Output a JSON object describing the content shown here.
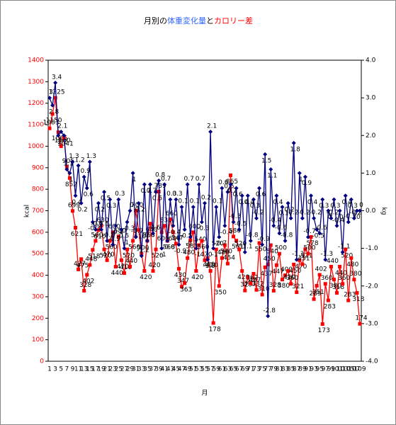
{
  "chart_data": {
    "type": "line",
    "title_parts": [
      "月別の",
      "体重変化量",
      "と",
      "カロリー差"
    ],
    "xlabel": "月",
    "ylabel": "kcal",
    "y2label": "kg",
    "categories": [
      "1",
      null,
      "3",
      null,
      "5",
      null,
      "7",
      null,
      "9",
      null,
      "11",
      null,
      "13",
      null,
      "15",
      null,
      "17",
      null,
      "19",
      null,
      "21",
      null,
      "23",
      null,
      "25",
      null,
      "27",
      null,
      "29",
      null,
      "31",
      null,
      "33",
      null,
      "35",
      null,
      "37",
      null,
      "39",
      null,
      "41",
      null,
      "43",
      null,
      "45",
      null,
      "47",
      null,
      "49",
      null,
      "51",
      null,
      "53",
      null,
      "55",
      null,
      "57",
      null,
      "59",
      null,
      "61",
      null,
      "63",
      null,
      "65",
      null,
      "67",
      null,
      "69",
      null,
      "71",
      null,
      "73",
      null,
      "75",
      null,
      "77",
      null,
      "79",
      null,
      "81",
      null,
      "83",
      null,
      "85",
      null,
      "87",
      null,
      "89",
      null,
      "91",
      null,
      "93",
      null,
      "95",
      null,
      "97",
      null,
      "99",
      null,
      "101",
      null,
      "103",
      null,
      "105",
      null,
      "107",
      null,
      "109"
    ],
    "ylim": [
      0,
      1400
    ],
    "yticks": [
      0,
      100,
      200,
      300,
      400,
      500,
      600,
      700,
      800,
      900,
      1000,
      1100,
      1200,
      1300,
      1400
    ],
    "y2lim": [
      -4,
      4
    ],
    "y2ticks": [
      {
        "value": -4,
        "label": "-4.0"
      },
      {
        "value": -3,
        "label": "-3.0"
      },
      {
        "value": -2,
        "label": "-2.0"
      },
      {
        "value": -1,
        "label": "-1.0"
      },
      {
        "value": 0,
        "label": "0.0"
      },
      {
        "value": 1,
        "label": "1.0"
      },
      {
        "value": 2,
        "label": "2.0"
      },
      {
        "value": 3,
        "label": "3.0"
      },
      {
        "value": 4,
        "label": "4.0"
      }
    ],
    "series": [
      {
        "name": "カロリー差",
        "color": "#ff0000",
        "marker": "square",
        "values": [
          1083,
          1150,
          1225,
          1065,
          1000,
          1041,
          905,
          852,
          699,
          621,
          427,
          475,
          328,
          402,
          448,
          518,
          560,
          610,
          630,
          520,
          470,
          560,
          600,
          440,
          580,
          470,
          410,
          520,
          440,
          560,
          700,
          610,
          500,
          420,
          560,
          640,
          420,
          520,
          789,
          600,
          630,
          560,
          660,
          600,
          547,
          430,
          347,
          363,
          480,
          563,
          600,
          420,
          540,
          560,
          470,
          480,
          420,
          178,
          520,
          350,
          480,
          540,
          454,
          865,
          580,
          561,
          520,
          420,
          329,
          390,
          362,
          407,
          332,
          550,
          310,
          437,
          450,
          540,
          328,
          447,
          500,
          380,
          400,
          420,
          360,
          450,
          321,
          470,
          451,
          521,
          500,
          578,
          289,
          351,
          402,
          173,
          360,
          283,
          440,
          380,
          318,
          440,
          360,
          520,
          283,
          480,
          380,
          318,
          174
        ]
      },
      {
        "name": "体重変化量",
        "color": "#000080",
        "marker": "diamond",
        "axis": "y2",
        "values": [
          3.0,
          2.8,
          3.4,
          2.0,
          2.1,
          2.0,
          1.1,
          1.0,
          1.3,
          0.4,
          1.2,
          0.2,
          0.9,
          0.6,
          1.3,
          -0.3,
          -0.5,
          0.2,
          -0.5,
          0.5,
          -0.8,
          0.3,
          -0.9,
          -0.4,
          0.3,
          -0.5,
          -1.0,
          -0.3,
          0.0,
          1.0,
          -0.7,
          0.2,
          -1.2,
          0.7,
          -0.8,
          0.7,
          -0.6,
          0.5,
          0.8,
          -1.0,
          0.7,
          -0.8,
          0.3,
          -0.4,
          0.3,
          -0.9,
          0.1,
          -0.5,
          0.7,
          -0.7,
          0.1,
          -1.0,
          0.7,
          -0.3,
          0.2,
          -1.3,
          2.1,
          -1.0,
          0.1,
          -0.7,
          0.6,
          -0.4,
          0.5,
          0.7,
          -0.3,
          0.6,
          -0.5,
          0.4,
          -1.1,
          0.4,
          -0.8,
          0.3,
          -0.2,
          0.6,
          -0.9,
          1.5,
          -2.8,
          1.1,
          -0.4,
          0.4,
          -0.6,
          0.1,
          -0.8,
          0.2,
          -0.2,
          1.8,
          -1.3,
          1.0,
          -0.2,
          0.9,
          -0.7,
          0.4,
          -0.2,
          -0.5,
          -0.6,
          0.3,
          -1.3,
          0.0,
          -0.2,
          0.3,
          -0.4,
          0.0,
          -1.1,
          0.4,
          -0.3,
          0.3,
          -0.2,
          0.0,
          0.0
        ]
      }
    ]
  }
}
